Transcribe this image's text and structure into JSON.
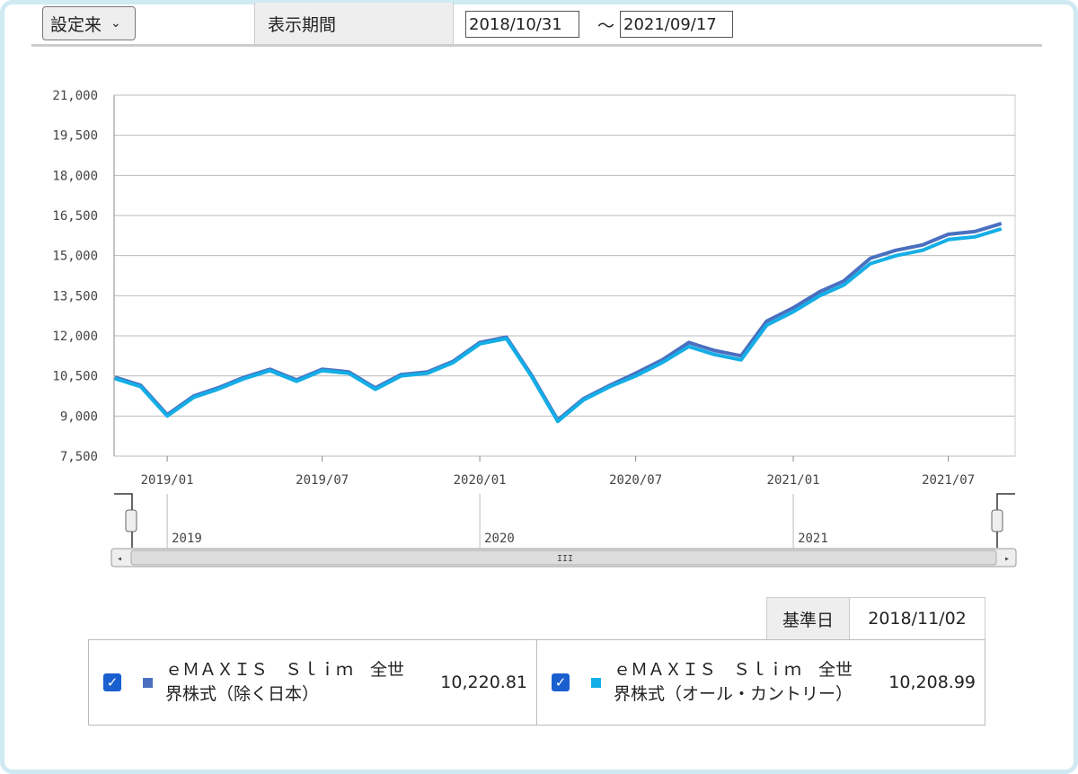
{
  "controls": {
    "period_select": "設定来",
    "period_label": "表示期間",
    "range_separator": "～"
  },
  "chart_data": {
    "type": "line",
    "x": [
      "2018/11",
      "2018/12",
      "2019/01",
      "2019/02",
      "2019/03",
      "2019/04",
      "2019/05",
      "2019/06",
      "2019/07",
      "2019/08",
      "2019/09",
      "2019/10",
      "2019/11",
      "2019/12",
      "2020/01",
      "2020/02",
      "2020/03",
      "2020/04",
      "2020/05",
      "2020/06",
      "2020/07",
      "2020/08",
      "2020/09",
      "2020/10",
      "2020/11",
      "2020/12",
      "2021/01",
      "2021/02",
      "2021/03",
      "2021/04",
      "2021/05",
      "2021/06",
      "2021/07",
      "2021/08",
      "2021/09"
    ],
    "series": [
      {
        "name": "ｅＭＡＸＩＳ　Ｓｌｉｍ　全世界株式（除く日本）",
        "color": "#4a6fc0",
        "values": [
          10450,
          10150,
          9050,
          9750,
          10050,
          10450,
          10750,
          10350,
          10750,
          10650,
          10050,
          10550,
          10650,
          11050,
          11750,
          11950,
          10550,
          8850,
          9650,
          10150,
          10600,
          11100,
          11750,
          11450,
          11250,
          12550,
          13050,
          13650,
          14050,
          14900,
          15200,
          15400,
          15800,
          15900,
          16200
        ]
      },
      {
        "name": "ｅＭＡＸＩＳ　Ｓｌｉｍ　全世界株式（オール・カントリー）",
        "color": "#14aee6",
        "values": [
          10400,
          10100,
          9000,
          9700,
          10000,
          10400,
          10700,
          10300,
          10700,
          10600,
          10000,
          10500,
          10600,
          11000,
          11700,
          11900,
          10500,
          8800,
          9600,
          10100,
          10500,
          11000,
          11600,
          11300,
          11100,
          12400,
          12900,
          13500,
          13900,
          14700,
          15000,
          15200,
          15600,
          15700,
          16000
        ]
      }
    ],
    "xlim": [
      "2018/10/31",
      "2021/09/17"
    ],
    "xticks": [
      "2019/01",
      "2019/07",
      "2020/01",
      "2020/07",
      "2021/01",
      "2021/07"
    ],
    "navigator_ticks": [
      "2019",
      "2020",
      "2021"
    ],
    "ylim": [
      7500,
      21000
    ],
    "yticks": [
      {
        "value": 7500,
        "label": "7,500"
      },
      {
        "value": 9000,
        "label": "9,000"
      },
      {
        "value": 10500,
        "label": "10,500"
      },
      {
        "value": 12000,
        "label": "12,000"
      },
      {
        "value": 13500,
        "label": "13,500"
      },
      {
        "value": 15000,
        "label": "15,000"
      },
      {
        "value": 16500,
        "label": "16,500"
      },
      {
        "value": 18000,
        "label": "18,000"
      },
      {
        "value": 19500,
        "label": "19,500"
      },
      {
        "value": 21000,
        "label": "21,000"
      }
    ],
    "grid": true
  },
  "readout": {
    "label": "基準日",
    "date": "2018/11/02",
    "values": [
      "10,220.81",
      "10,208.99"
    ]
  }
}
